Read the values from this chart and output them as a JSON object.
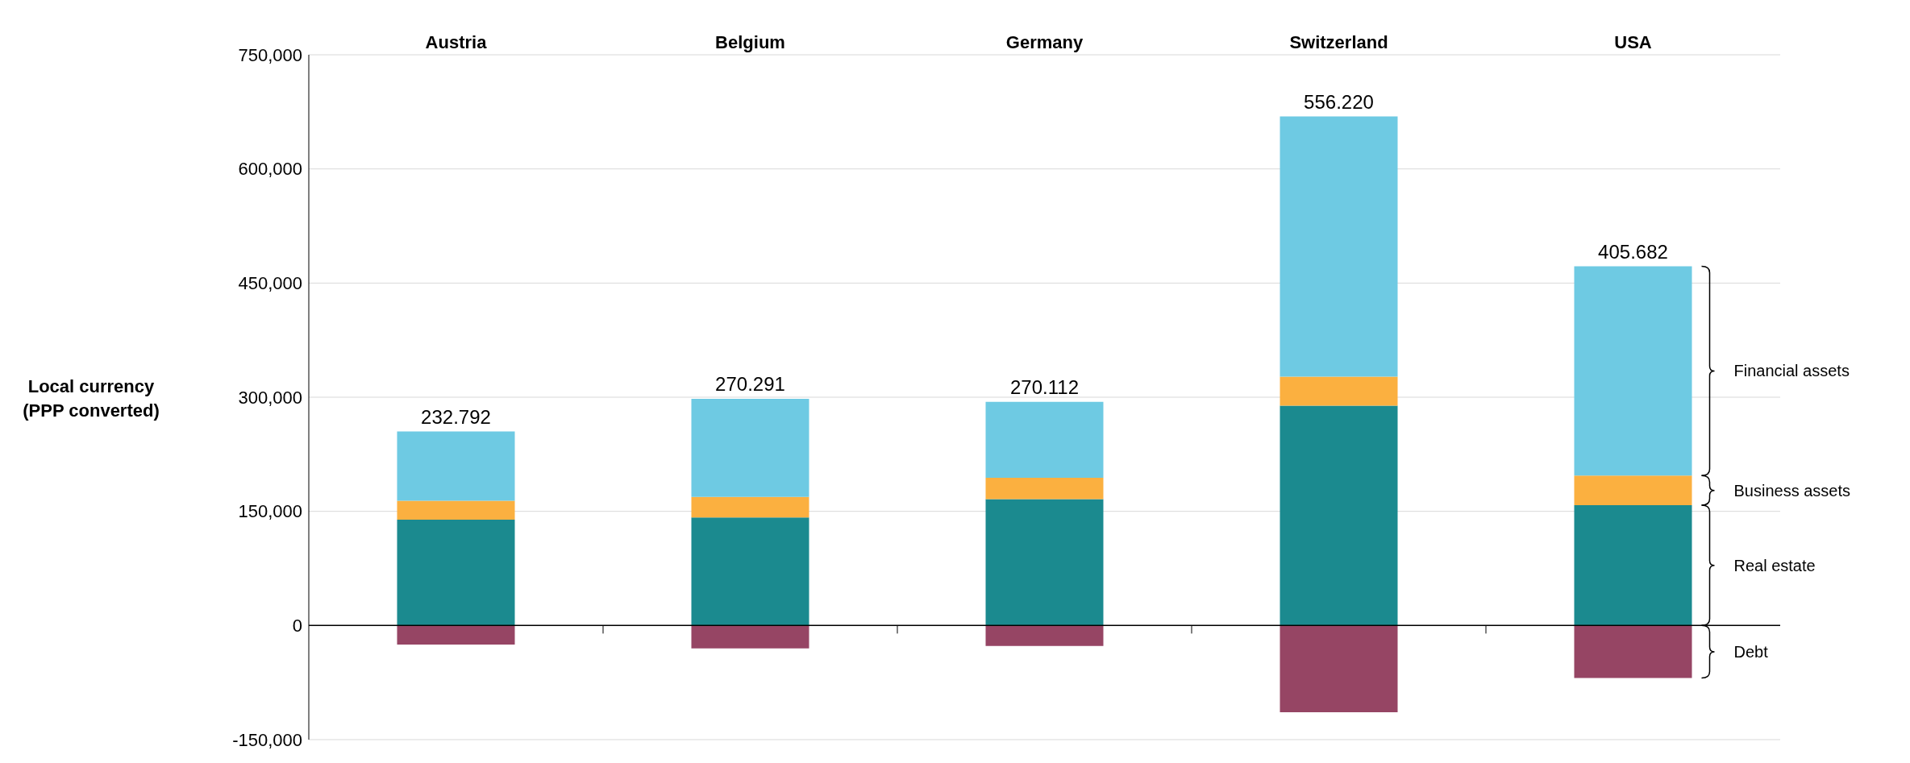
{
  "chart_data": {
    "type": "bar",
    "stacked": true,
    "ylabel": "Local currency (PPP converted)",
    "categories": [
      "Austria",
      "Belgium",
      "Germany",
      "Switzerland",
      "USA"
    ],
    "series": [
      {
        "name": "Real estate",
        "color": "#1b8a8f",
        "values": [
          139000,
          142000,
          166000,
          289000,
          158000
        ]
      },
      {
        "name": "Business assets",
        "color": "#fbb040",
        "values": [
          25000,
          27000,
          28000,
          38000,
          39000
        ]
      },
      {
        "name": "Financial assets",
        "color": "#6ecae3",
        "values": [
          91000,
          129000,
          100000,
          342000,
          275000
        ]
      },
      {
        "name": "Debt",
        "color": "#964564",
        "values": [
          -25000,
          -30000,
          -27000,
          -114000,
          -69000
        ]
      }
    ],
    "annotations": [
      {
        "text": "232.792",
        "x": "Austria",
        "y": 255000
      },
      {
        "text": "270.291",
        "x": "Belgium",
        "y": 298000
      },
      {
        "text": "270.112",
        "x": "Germany",
        "y": 294000
      },
      {
        "text": "556.220",
        "x": "Switzerland",
        "y": 669000
      },
      {
        "text": "405.682",
        "x": "USA",
        "y": 472000
      }
    ],
    "ylim": [
      -150000,
      750000
    ],
    "yticks": [
      {
        "value": -150000,
        "label": "-150,000"
      },
      {
        "value": 0,
        "label": "0"
      },
      {
        "value": 150000,
        "label": "150,000"
      },
      {
        "value": 300000,
        "label": "300,000"
      },
      {
        "value": 450000,
        "label": "450,000"
      },
      {
        "value": 600000,
        "label": "600,000"
      },
      {
        "value": 750000,
        "label": "750,000"
      }
    ],
    "grid": "y"
  }
}
